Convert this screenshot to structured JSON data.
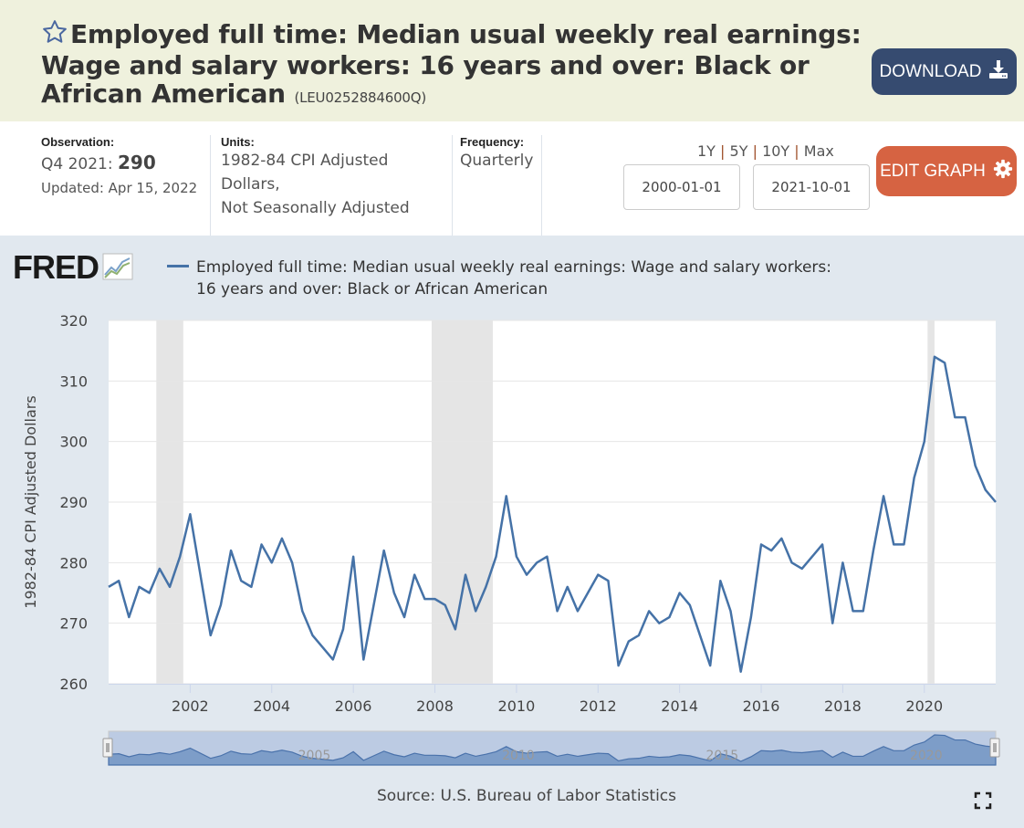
{
  "header": {
    "title": "Employed full time: Median usual weekly real earnings: Wage and salary workers: 16 years and over: Black or African American",
    "series_id": "(LEU0252884600Q)",
    "download_label": "DOWNLOAD"
  },
  "info": {
    "observation_label": "Observation:",
    "observation_period": "Q4 2021:",
    "observation_value": "290",
    "updated": "Updated: Apr 15, 2022",
    "units_label": "Units:",
    "units_line1": "1982-84 CPI Adjusted",
    "units_line2": "Dollars,",
    "units_line3": "Not Seasonally Adjusted",
    "frequency_label": "Frequency:",
    "frequency_value": "Quarterly"
  },
  "controls": {
    "range_links": [
      "1Y",
      "5Y",
      "10Y",
      "Max"
    ],
    "range_sep": "|",
    "start_date": "2000-01-01",
    "end_date": "2021-10-01",
    "edit_label": "EDIT GRAPH"
  },
  "colors": {
    "line": "#4572a7",
    "recession": "#e5e5e5",
    "download": "#364b70",
    "edit": "#d66342"
  },
  "chart_data": {
    "type": "line",
    "title": "",
    "legend": "Employed full time: Median usual weekly real earnings: Wage and salary workers: 16 years and over: Black or African American",
    "legend_position": "top-left",
    "logo": "FRED",
    "xlabel": "",
    "ylabel": "1982-84 CPI Adjusted Dollars",
    "ylim": [
      260,
      320
    ],
    "yticks": [
      "260",
      "270",
      "280",
      "290",
      "300",
      "310",
      "320"
    ],
    "xlim": [
      2000.0,
      2021.75
    ],
    "xticks": [
      "2002",
      "2004",
      "2006",
      "2008",
      "2010",
      "2012",
      "2014",
      "2016",
      "2018",
      "2020"
    ],
    "navigator_ticks": [
      "2005",
      "2010",
      "2015",
      "2020"
    ],
    "grid": true,
    "recessions": [
      [
        2001.17,
        2001.83
      ],
      [
        2007.92,
        2009.42
      ],
      [
        2020.08,
        2020.25
      ]
    ],
    "start_year": 2000,
    "frequency_per_year": 4,
    "series": [
      {
        "name": "LEU0252884600Q",
        "values": [
          276,
          277,
          271,
          276,
          275,
          279,
          276,
          281,
          288,
          278,
          268,
          273,
          282,
          277,
          276,
          283,
          280,
          284,
          280,
          272,
          268,
          266,
          264,
          269,
          281,
          264,
          273,
          282,
          275,
          271,
          278,
          274,
          274,
          273,
          269,
          278,
          272,
          276,
          281,
          291,
          281,
          278,
          280,
          281,
          272,
          276,
          272,
          275,
          278,
          277,
          263,
          267,
          268,
          272,
          270,
          271,
          275,
          273,
          268,
          263,
          277,
          272,
          262,
          271,
          283,
          282,
          284,
          280,
          279,
          281,
          283,
          270,
          280,
          272,
          272,
          282,
          291,
          283,
          283,
          294,
          300,
          314,
          313,
          304,
          304,
          296,
          292,
          290
        ]
      }
    ]
  },
  "footer": {
    "source": "Source: U.S. Bureau of Labor Statistics"
  }
}
